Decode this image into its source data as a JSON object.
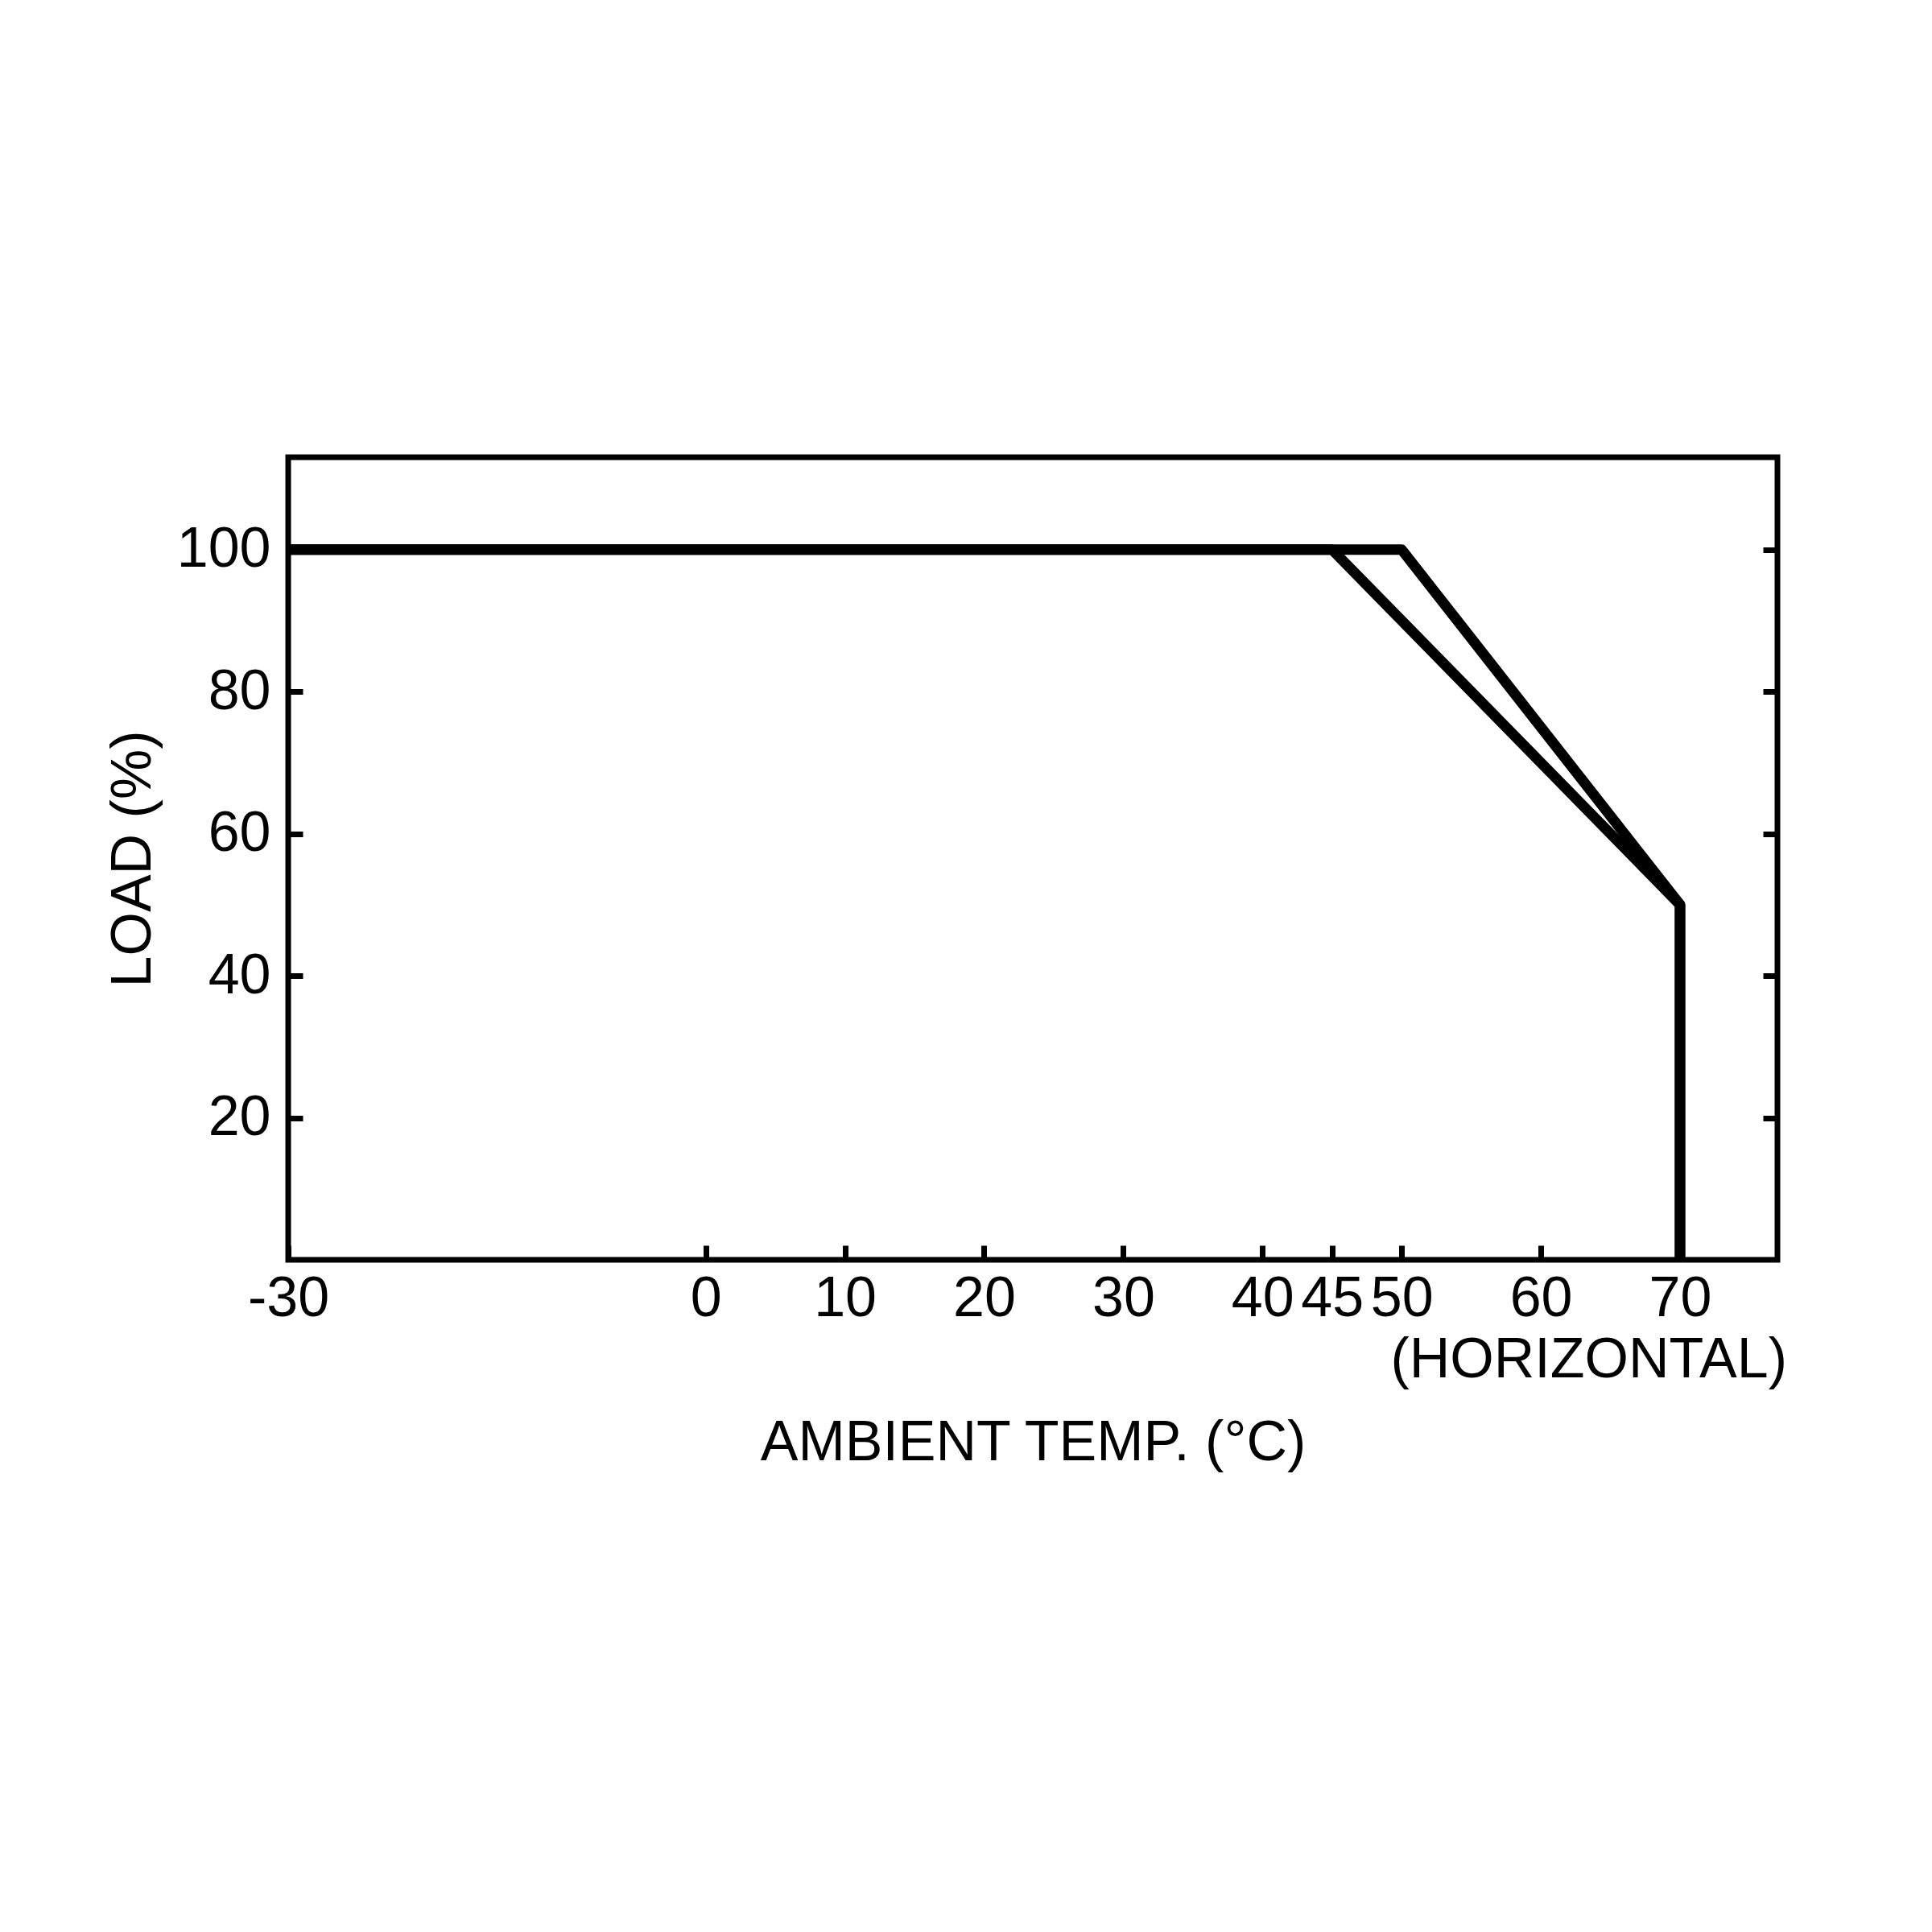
{
  "chart_data": {
    "type": "line",
    "xlabel": "AMBIENT TEMP. (°C)",
    "ylabel": "LOAD (%)",
    "annotations": [
      "(HORIZONTAL)"
    ],
    "xlim": [
      -30,
      77
    ],
    "ylim": [
      0,
      113
    ],
    "xticks": [
      -30,
      0,
      10,
      20,
      30,
      40,
      45,
      50,
      60,
      70
    ],
    "yticks": [
      20,
      40,
      60,
      80,
      100
    ],
    "grid": false,
    "marker": "none",
    "line_style": "solid",
    "series": [
      {
        "color": "#000000",
        "x": [
          -30,
          45,
          70,
          70
        ],
        "values": [
          100,
          100,
          50,
          0
        ]
      },
      {
        "color": "#000000",
        "x": [
          -30,
          50,
          70,
          70
        ],
        "values": [
          100,
          100,
          50,
          0
        ]
      }
    ]
  }
}
